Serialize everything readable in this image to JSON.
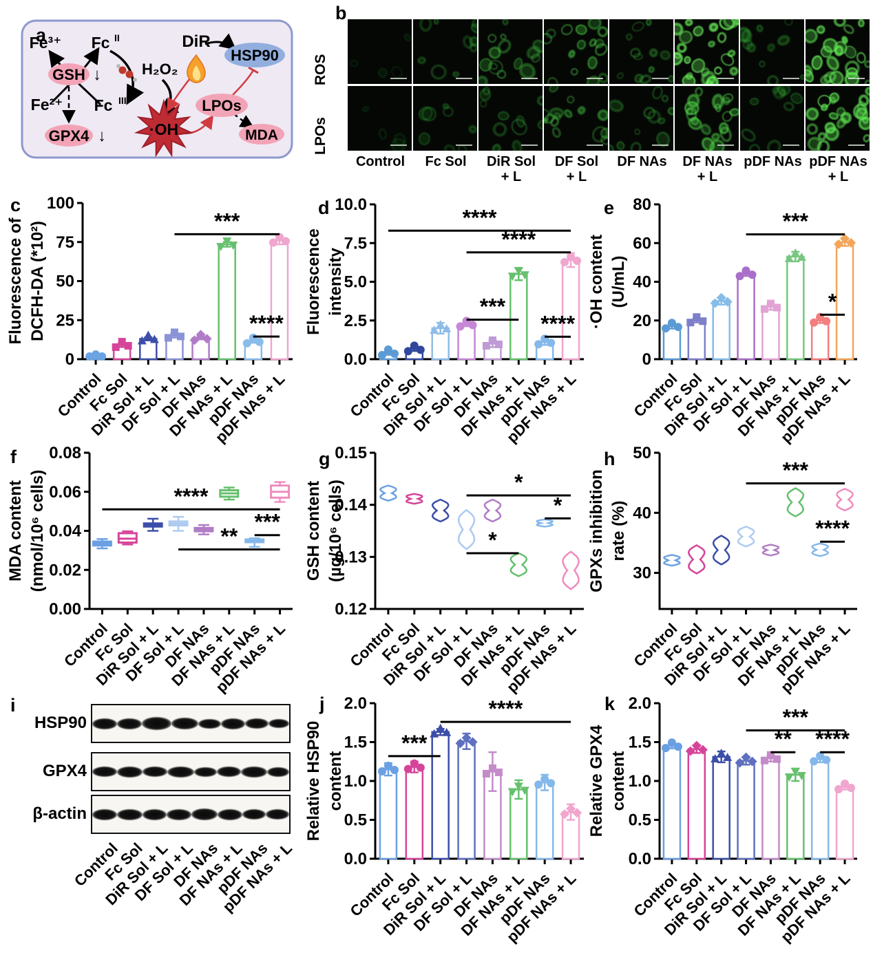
{
  "groups": [
    "Control",
    "Fc Sol",
    "DiR Sol + L",
    "DF Sol + L",
    "DF NAs",
    "DF NAs + L",
    "pDF NAs",
    "pDF NAs + L"
  ],
  "panels": {
    "a": {
      "letter": "a",
      "nodes": {
        "fe3": "Fe³⁺",
        "fe2": "Fe²⁺",
        "fc_base": "Fc",
        "fc2_sup": "II",
        "fc3_sup": "III",
        "gsh": "GSH",
        "gpx4": "GPX4",
        "down_arrow": "↓",
        "h2o2": "H₂O₂",
        "dir": "DiR",
        "hsp90": "HSP90",
        "lpos": "LPOs",
        "mda": "MDA",
        "oh": "·OH"
      },
      "colors": {
        "pink_node": "#F2A4B6",
        "blue_node": "#92AEDE",
        "star": "#BE2B33",
        "red_arrow": "#D13B40",
        "background": "#EFE9F4",
        "border": "#8E98CD"
      }
    },
    "b": {
      "letter": "b",
      "row_labels": [
        "ROS",
        "LPOs"
      ],
      "col_labels": [
        [
          "Control",
          ""
        ],
        [
          "Fc Sol",
          ""
        ],
        [
          "DiR Sol",
          "+ L"
        ],
        [
          "DF Sol",
          "+ L"
        ],
        [
          "DF NAs",
          ""
        ],
        [
          "DF NAs",
          "+ L"
        ],
        [
          "pDF NAs",
          ""
        ],
        [
          "pDF NAs",
          "+ L"
        ]
      ],
      "ros_intensity": [
        0.02,
        0.25,
        0.45,
        0.5,
        0.35,
        0.85,
        0.3,
        0.8
      ],
      "lpos_intensity": [
        0.02,
        0.2,
        0.3,
        0.45,
        0.35,
        0.6,
        0.25,
        0.75
      ]
    },
    "i": {
      "letter": "i",
      "strip_labels": [
        "HSP90",
        "GPX4",
        "β-actin"
      ],
      "band_intensities": [
        [
          1.0,
          0.95,
          1.45,
          1.2,
          0.75,
          0.95,
          0.9,
          0.55
        ],
        [
          0.9,
          1.0,
          0.9,
          1.05,
          0.7,
          0.9,
          1.0,
          0.65
        ],
        [
          1.0,
          1.05,
          0.95,
          1.05,
          1.1,
          1.0,
          0.9,
          0.9
        ]
      ],
      "x_labels": [
        "Control",
        "Fc Sol",
        "DiR Sol + L",
        "DF Sol + L",
        "DF NAs",
        "DF NAs + L",
        "pDF NAs",
        "pDF NAs + L"
      ]
    }
  },
  "chart_data": [
    {
      "id": "c",
      "letter": "c",
      "type": "bar",
      "title": "",
      "ylabel": [
        "Fluorescence of",
        "DCFH-DA (*10²)"
      ],
      "ylim": [
        0,
        100
      ],
      "ytick_vals": [
        0,
        25,
        50,
        75,
        100
      ],
      "ytick_labels": [
        "0",
        "25",
        "50",
        "75",
        "100"
      ],
      "categories": [
        "Control",
        "Fc Sol",
        "DiR Sol + L",
        "DF Sol + L",
        "DF NAs",
        "DF NAs + L",
        "pDF NAs",
        "pDF NAs + L"
      ],
      "values": [
        0.8,
        9,
        13,
        15,
        13.5,
        73.5,
        11.5,
        76
      ],
      "errors": [
        0.4,
        1.2,
        1.0,
        1.2,
        0.8,
        1.5,
        1.0,
        2.5
      ],
      "colors": [
        "#6BA3E3",
        "#D6449A",
        "#3D4EA8",
        "#8B93D8",
        "#B07CC6",
        "#66C06D",
        "#88BCEA",
        "#F0A6CE"
      ],
      "markers": [
        "circle",
        "square",
        "triangle",
        "square",
        "diamond",
        "triangle-down",
        "circle",
        "circle"
      ],
      "sig": [
        {
          "from": 3,
          "to": 7,
          "y": 80,
          "label": "***"
        },
        {
          "from": 6,
          "to": 7,
          "y": 14.5,
          "label": "****"
        }
      ]
    },
    {
      "id": "d",
      "letter": "d",
      "type": "bar",
      "title": "",
      "ylabel": [
        "Fluorescence",
        "intensity"
      ],
      "ylim": [
        0,
        10
      ],
      "ytick_vals": [
        0,
        2.5,
        5,
        7.5,
        10
      ],
      "ytick_labels": [
        "0.0",
        "2.5",
        "5.0",
        "7.5",
        "10.0"
      ],
      "categories": [
        "Control",
        "Fc Sol",
        "DiR Sol + L",
        "DF Sol + L",
        "DF NAs",
        "DF NAs + L",
        "pDF NAs",
        "pDF NAs + L"
      ],
      "values": [
        0.4,
        0.65,
        2.0,
        2.25,
        1.0,
        5.5,
        1.1,
        6.4
      ],
      "errors": [
        0.12,
        0.12,
        0.35,
        0.12,
        0.22,
        0.4,
        0.18,
        0.45
      ],
      "colors": [
        "#5B9BD5",
        "#31479E",
        "#8FBCE8",
        "#C587D6",
        "#BF9BD6",
        "#66C06D",
        "#85B8EA",
        "#F0A6CE"
      ],
      "markers": [
        "circle",
        "circle",
        "triangle",
        "circle",
        "square",
        "triangle-down",
        "circle",
        "circle"
      ],
      "sig": [
        {
          "from": 0,
          "to": 7,
          "y": 8.3,
          "label": "****"
        },
        {
          "from": 3,
          "to": 7,
          "y": 6.9,
          "label": "****"
        },
        {
          "from": 3,
          "to": 5,
          "y": 2.55,
          "label": "***"
        },
        {
          "from": 6,
          "to": 7,
          "y": 1.45,
          "label": "****"
        }
      ]
    },
    {
      "id": "e",
      "letter": "e",
      "type": "bar",
      "title": "",
      "ylabel": [
        "·OH content",
        "(U/mL)"
      ],
      "ylim": [
        0,
        80
      ],
      "ytick_vals": [
        0,
        20,
        40,
        60,
        80
      ],
      "ytick_labels": [
        "0",
        "20",
        "40",
        "60",
        "80"
      ],
      "categories": [
        "Control",
        "Fc Sol",
        "DiR Sol + L",
        "DF Sol + L",
        "DF NAs",
        "DF NAs + L",
        "pDF NAs",
        "pDF NAs + L"
      ],
      "values": [
        17,
        20,
        30,
        44,
        27,
        53,
        20,
        60.5
      ],
      "errors": [
        1.2,
        1.0,
        1.8,
        1.0,
        1.5,
        2.5,
        1.3,
        2.0
      ],
      "colors": [
        "#5B9BD5",
        "#7D7FC9",
        "#85BCE9",
        "#A96FC8",
        "#E2A3D4",
        "#77C77F",
        "#F47E7E",
        "#F2A65B"
      ],
      "markers": [
        "circle",
        "square",
        "diamond",
        "circle",
        "square",
        "triangle",
        "circle",
        "diamond"
      ],
      "sig": [
        {
          "from": 3,
          "to": 7,
          "y": 64.5,
          "label": "***"
        },
        {
          "from": 6,
          "to": 7,
          "y": 23,
          "label": "*"
        }
      ]
    },
    {
      "id": "f",
      "letter": "f",
      "type": "box",
      "title": "",
      "ylabel": [
        "MDA content",
        "(nmol/10⁶ cells)"
      ],
      "ylim": [
        0,
        0.08
      ],
      "ytick_vals": [
        0,
        0.02,
        0.04,
        0.06,
        0.08
      ],
      "ytick_labels": [
        "0.00",
        "0.02",
        "0.04",
        "0.06",
        "0.08"
      ],
      "categories": [
        "Control",
        "Fc Sol",
        "DiR Sol + L",
        "DF Sol + L",
        "DF NAs",
        "DF NAs + L",
        "pDF NAs",
        "pDF NAs + L"
      ],
      "box": [
        [
          0.031,
          0.0325,
          0.0335,
          0.0345,
          0.0358
        ],
        [
          0.033,
          0.034,
          0.036,
          0.0388,
          0.0398
        ],
        [
          0.04,
          0.0422,
          0.043,
          0.0438,
          0.0462
        ],
        [
          0.04,
          0.0428,
          0.0438,
          0.0448,
          0.0472
        ],
        [
          0.0382,
          0.0398,
          0.0408,
          0.0415,
          0.043
        ],
        [
          0.056,
          0.0575,
          0.0592,
          0.0608,
          0.0622
        ],
        [
          0.0318,
          0.0342,
          0.0352,
          0.0356,
          0.0362
        ],
        [
          0.0548,
          0.057,
          0.06,
          0.0632,
          0.065
        ]
      ],
      "colors": [
        "#6AA0E2",
        "#D6449A",
        "#3D4EA8",
        "#AECBEF",
        "#B07CC6",
        "#66C06D",
        "#85B8EA",
        "#F08CBE"
      ],
      "sig": [
        {
          "from": 0,
          "to": 7,
          "y": 0.051,
          "label": "****"
        },
        {
          "from": 3,
          "to": 7,
          "y": 0.0305,
          "label": "**"
        },
        {
          "from": 6,
          "to": 7,
          "y": 0.0378,
          "label": "***"
        }
      ]
    },
    {
      "id": "g",
      "letter": "g",
      "type": "violin",
      "title": "",
      "ylabel": [
        "GSH content",
        "(µg/10⁶ cells)"
      ],
      "ylim": [
        0.12,
        0.15
      ],
      "ytick_vals": [
        0.12,
        0.13,
        0.14,
        0.15
      ],
      "ytick_labels": [
        "0.12",
        "0.13",
        "0.14",
        "0.15"
      ],
      "categories": [
        "Control",
        "Fc Sol",
        "DiR Sol + L",
        "DF Sol + L",
        "DF NAs",
        "DF NAs + L",
        "pDF NAs",
        "pDF NAs + L"
      ],
      "range": [
        [
          0.1408,
          0.1437
        ],
        [
          0.1402,
          0.1421
        ],
        [
          0.1368,
          0.141
        ],
        [
          0.1315,
          0.139
        ],
        [
          0.1368,
          0.141
        ],
        [
          0.1263,
          0.1307
        ],
        [
          0.1358,
          0.1372
        ],
        [
          0.1238,
          0.131
        ]
      ],
      "colors": [
        "#6AA0E2",
        "#D6449A",
        "#3D4EA8",
        "#AECBEF",
        "#B07CC6",
        "#66C06D",
        "#85B8EA",
        "#F08CBE"
      ],
      "sig": [
        {
          "from": 3,
          "to": 7,
          "y": 0.1418,
          "label": "*"
        },
        {
          "from": 3,
          "to": 5,
          "y": 0.1307,
          "label": "*"
        },
        {
          "from": 6,
          "to": 7,
          "y": 0.1374,
          "label": "*"
        }
      ]
    },
    {
      "id": "h",
      "letter": "h",
      "type": "violin",
      "title": "",
      "ylabel": [
        "GPXs inhibition",
        "rate (%)"
      ],
      "ylim": [
        24,
        50
      ],
      "ytick_vals": [
        30,
        40,
        50
      ],
      "ytick_labels": [
        "30",
        "40",
        "50"
      ],
      "categories": [
        "Control",
        "Fc Sol",
        "DiR Sol + L",
        "DF Sol + L",
        "DF NAs",
        "DF NAs + L",
        "pDF NAs",
        "pDF NAs + L"
      ],
      "range": [
        [
          31.2,
          33.0
        ],
        [
          29.9,
          34.6
        ],
        [
          31.4,
          36.2
        ],
        [
          34.4,
          37.7
        ],
        [
          32.9,
          34.7
        ],
        [
          39.4,
          44.1
        ],
        [
          32.8,
          34.9
        ],
        [
          40.4,
          44.0
        ]
      ],
      "colors": [
        "#6AA0E2",
        "#D6449A",
        "#3D4EA8",
        "#AECBEF",
        "#B07CC6",
        "#66C06D",
        "#85B8EA",
        "#F08CBE"
      ],
      "sig": [
        {
          "from": 3,
          "to": 7,
          "y": 44.9,
          "label": "***"
        },
        {
          "from": 6,
          "to": 7,
          "y": 35.2,
          "label": "****"
        }
      ]
    },
    {
      "id": "j",
      "letter": "j",
      "type": "bar",
      "title": "",
      "ylabel": [
        "Relative HSP90",
        "content"
      ],
      "ylim": [
        0,
        2
      ],
      "ytick_vals": [
        0,
        0.5,
        1,
        1.5,
        2
      ],
      "ytick_labels": [
        "0.0",
        "0.5",
        "1.0",
        "1.5",
        "2.0"
      ],
      "categories": [
        "Control",
        "Fc Sol",
        "DiR Sol + L",
        "DF Sol + L",
        "DF NAs",
        "DF NAs + L",
        "pDF NAs",
        "pDF NAs + L"
      ],
      "values": [
        1.15,
        1.18,
        1.63,
        1.51,
        1.12,
        0.89,
        0.98,
        0.6
      ],
      "errors": [
        0.08,
        0.07,
        0.04,
        0.1,
        0.25,
        0.12,
        0.1,
        0.1
      ],
      "colors": [
        "#6AA0E2",
        "#D6449A",
        "#3D4EA8",
        "#5F6FBF",
        "#C48BC9",
        "#66C06D",
        "#85B8EA",
        "#F0A6CE"
      ],
      "markers": [
        "circle",
        "circle",
        "triangle",
        "diamond",
        "square",
        "triangle-down",
        "circle",
        "diamond"
      ],
      "sig": [
        {
          "from": 0,
          "to": 2,
          "y": 1.32,
          "label": "***"
        },
        {
          "from": 2,
          "to": 7,
          "y": 1.76,
          "label": "****"
        }
      ]
    },
    {
      "id": "k",
      "letter": "k",
      "type": "bar",
      "title": "",
      "ylabel": [
        "Relative GPX4",
        "content"
      ],
      "ylim": [
        0,
        2
      ],
      "ytick_vals": [
        0,
        0.5,
        1,
        1.5,
        2
      ],
      "ytick_labels": [
        "0.0",
        "0.5",
        "1.0",
        "1.5",
        "2.0"
      ],
      "categories": [
        "Control",
        "Fc Sol",
        "DiR Sol + L",
        "DF Sol + L",
        "DF NAs",
        "DF NAs + L",
        "pDF NAs",
        "pDF NAs + L"
      ],
      "values": [
        1.45,
        1.41,
        1.31,
        1.26,
        1.29,
        1.08,
        1.28,
        0.92
      ],
      "errors": [
        0.03,
        0.05,
        0.07,
        0.05,
        0.04,
        0.08,
        0.04,
        0.03
      ],
      "colors": [
        "#6AA0E2",
        "#D6449A",
        "#3D4EA8",
        "#5F6FBF",
        "#C48BC9",
        "#66C06D",
        "#85B8EA",
        "#F0A6CE"
      ],
      "markers": [
        "circle",
        "diamond",
        "triangle",
        "diamond",
        "square",
        "triangle-down",
        "circle",
        "circle"
      ],
      "sig": [
        {
          "from": 3,
          "to": 7,
          "y": 1.65,
          "label": "***"
        },
        {
          "from": 4,
          "to": 5,
          "y": 1.37,
          "label": "**"
        },
        {
          "from": 6,
          "to": 7,
          "y": 1.37,
          "label": "****"
        }
      ]
    }
  ]
}
